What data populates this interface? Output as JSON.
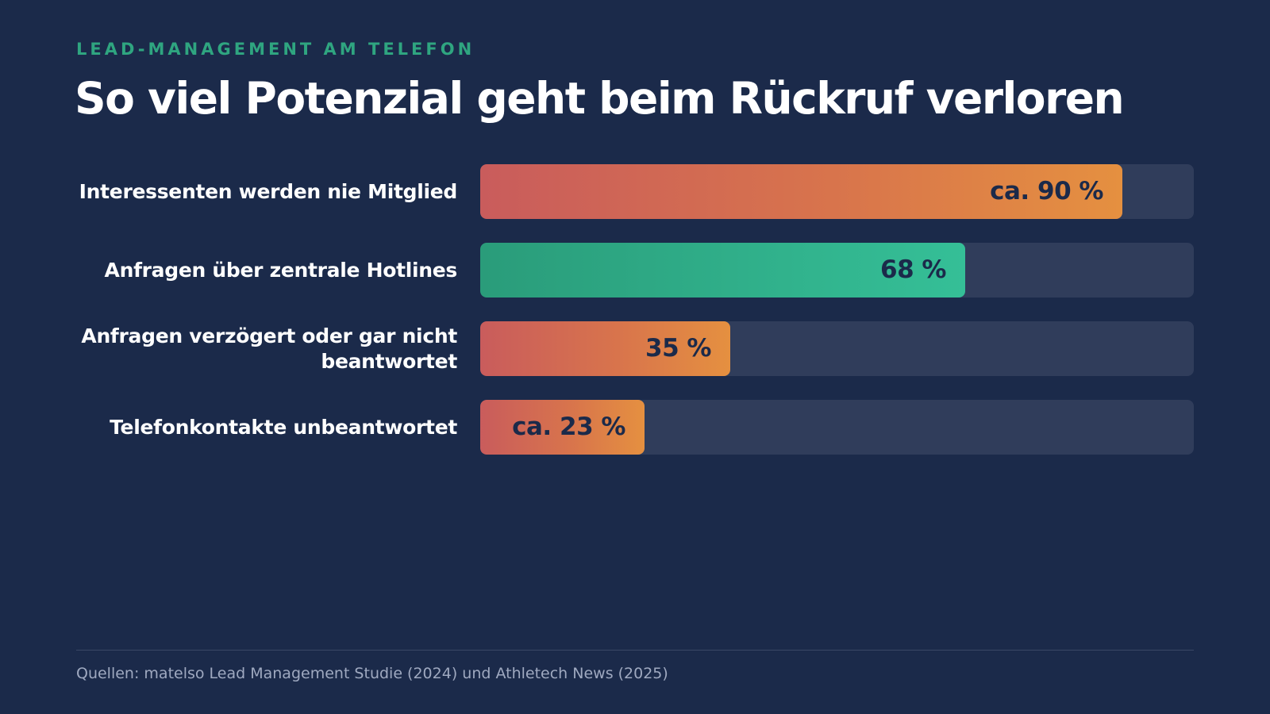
{
  "header": {
    "eyebrow": "LEAD-MANAGEMENT AM TELEFON",
    "title": "So viel Potenzial geht beim Rückruf verloren"
  },
  "colors": {
    "background": "#1b2a4a",
    "track": "#303d5b",
    "eyebrow": "#2fa580",
    "warm_start": "#c95c5c",
    "warm_end": "#e59040",
    "green_start": "#2a9c7a",
    "green_end": "#35bf97"
  },
  "chart_data": {
    "type": "bar",
    "orientation": "horizontal",
    "xlim": [
      0,
      100
    ],
    "categories": [
      "Interessenten werden nie Mitglied",
      "Anfragen über zentrale Hotlines",
      "Anfragen verzögert oder gar nicht beantwortet",
      "Telefonkontakte unbeantwortet"
    ],
    "values": [
      90,
      68,
      35,
      23
    ],
    "value_labels": [
      "ca. 90 %",
      "68 %",
      "35 %",
      "ca. 23 %"
    ],
    "bar_styles": [
      "warm",
      "green",
      "warm",
      "warm"
    ]
  },
  "footer": {
    "source": "Quellen: matelso Lead Management Studie (2024) und Athletech News (2025)"
  }
}
